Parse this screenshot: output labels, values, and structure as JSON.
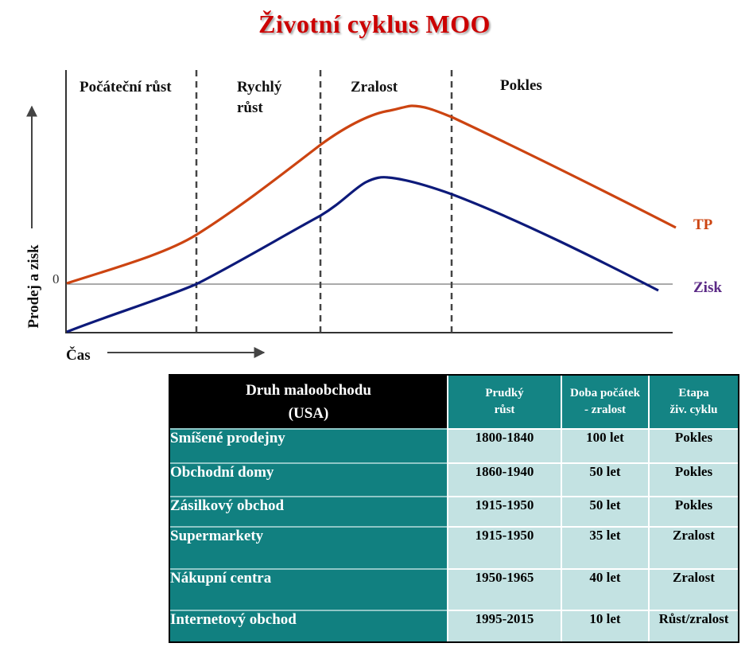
{
  "title": "Životní cyklus MOO",
  "chart": {
    "phases": [
      "Počáteční růst",
      "Rychlý\nrůst",
      "Zralost",
      "Pokles"
    ],
    "y_axis_label": "Prodej a zisk",
    "x_axis_label": "Čas",
    "zero_label": "0",
    "series": [
      {
        "name": "TP",
        "color": "#cc4411"
      },
      {
        "name": "Zisk",
        "color": "#0d1a7a",
        "label_color": "#5b2a86"
      }
    ]
  },
  "table": {
    "header": {
      "col1": "Druh maloobchodu\n(USA)",
      "col2": "Prudký\nrůst",
      "col3": "Doba počátek\n- zralost",
      "col4": "Etapa\nživ. cyklu"
    },
    "rows": [
      {
        "name": "Smíšené prodejny",
        "growth": "1800-1840",
        "duration": "100 let",
        "stage": "Pokles"
      },
      {
        "name": "Obchodní domy",
        "growth": "1860-1940",
        "duration": "50 let",
        "stage": "Pokles"
      },
      {
        "name": "Zásilkový obchod",
        "growth": "1915-1950",
        "duration": "50 let",
        "stage": "Pokles"
      },
      {
        "name": "Supermarkety",
        "growth": "1915-1950",
        "duration": "35 let",
        "stage": "Zralost"
      },
      {
        "name": "Nákupní centra",
        "growth": "1950-1965",
        "duration": "40 let",
        "stage": "Zralost"
      },
      {
        "name": "Internetový obchod",
        "growth": "1995-2015",
        "duration": "10 let",
        "stage": "Růst/zralost"
      }
    ]
  }
}
